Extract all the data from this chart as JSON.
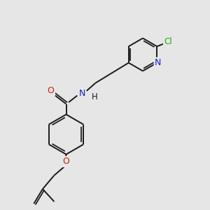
{
  "bg_color": "#e6e6e6",
  "bond_color": "#1a1a1a",
  "bond_lw": 1.4,
  "atom_colors": {
    "N": "#1a1acc",
    "O": "#cc2200",
    "Cl": "#22aa00"
  },
  "font_size": 8.5,
  "fig_size": [
    3.0,
    3.0
  ],
  "dpi": 100
}
